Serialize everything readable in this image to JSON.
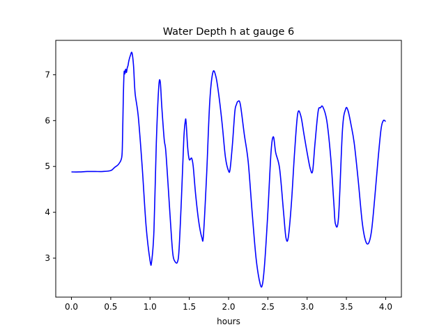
{
  "chart_data": {
    "type": "line",
    "title": "Water Depth h at gauge 6",
    "xlabel": "hours",
    "ylabel": "",
    "xlim": [
      -0.2,
      4.2
    ],
    "ylim": [
      2.15,
      7.75
    ],
    "xticks": [
      0.0,
      0.5,
      1.0,
      1.5,
      2.0,
      2.5,
      3.0,
      3.5,
      4.0
    ],
    "xtick_labels": [
      "0.0",
      "0.5",
      "1.0",
      "1.5",
      "2.0",
      "2.5",
      "3.0",
      "3.5",
      "4.0"
    ],
    "yticks": [
      3,
      4,
      5,
      6,
      7
    ],
    "ytick_labels": [
      "3",
      "4",
      "5",
      "6",
      "7"
    ],
    "grid": false,
    "series": [
      {
        "color": "#0000ff",
        "x": [
          0.0,
          0.1,
          0.2,
          0.3,
          0.4,
          0.5,
          0.55,
          0.6,
          0.64,
          0.65,
          0.66,
          0.67,
          0.68,
          0.69,
          0.7,
          0.71,
          0.72,
          0.73,
          0.75,
          0.77,
          0.79,
          0.81,
          0.85,
          0.9,
          0.95,
          1.0,
          1.02,
          1.05,
          1.08,
          1.11,
          1.13,
          1.15,
          1.18,
          1.2,
          1.23,
          1.26,
          1.29,
          1.32,
          1.35,
          1.37,
          1.4,
          1.43,
          1.45,
          1.46,
          1.48,
          1.5,
          1.53,
          1.55,
          1.58,
          1.62,
          1.66,
          1.68,
          1.72,
          1.76,
          1.8,
          1.84,
          1.88,
          1.92,
          1.96,
          2.0,
          2.02,
          2.05,
          2.08,
          2.1,
          2.12,
          2.15,
          2.2,
          2.25,
          2.3,
          2.35,
          2.4,
          2.43,
          2.46,
          2.5,
          2.54,
          2.57,
          2.6,
          2.65,
          2.7,
          2.73,
          2.76,
          2.8,
          2.84,
          2.88,
          2.92,
          2.96,
          3.0,
          3.04,
          3.07,
          3.1,
          3.14,
          3.17,
          3.2,
          3.25,
          3.3,
          3.34,
          3.36,
          3.4,
          3.45,
          3.49,
          3.52,
          3.56,
          3.6,
          3.65,
          3.7,
          3.74,
          3.78,
          3.82,
          3.86,
          3.9,
          3.94,
          3.97,
          4.0
        ],
        "y": [
          4.88,
          4.88,
          4.89,
          4.89,
          4.89,
          4.91,
          4.98,
          5.05,
          5.2,
          5.6,
          6.5,
          7.05,
          7.02,
          7.12,
          7.05,
          7.15,
          7.2,
          7.3,
          7.42,
          7.48,
          7.2,
          6.6,
          6.1,
          5.0,
          3.7,
          2.95,
          2.92,
          3.6,
          5.5,
          6.7,
          6.85,
          6.3,
          5.6,
          5.35,
          4.6,
          3.8,
          3.1,
          2.92,
          2.92,
          3.2,
          4.3,
          5.6,
          6.0,
          5.95,
          5.4,
          5.15,
          5.18,
          5.0,
          4.4,
          3.8,
          3.45,
          3.5,
          4.8,
          6.4,
          7.05,
          6.95,
          6.5,
          5.9,
          5.2,
          4.9,
          4.95,
          5.5,
          6.2,
          6.35,
          6.42,
          6.35,
          5.7,
          5.1,
          4.0,
          3.0,
          2.45,
          2.42,
          2.9,
          4.0,
          5.3,
          5.65,
          5.3,
          4.95,
          4.0,
          3.45,
          3.45,
          4.2,
          5.3,
          6.15,
          6.1,
          5.7,
          5.3,
          4.95,
          4.9,
          5.5,
          6.2,
          6.28,
          6.3,
          6.0,
          5.2,
          4.2,
          3.75,
          3.9,
          5.8,
          6.25,
          6.22,
          5.9,
          5.5,
          4.7,
          3.8,
          3.4,
          3.32,
          3.6,
          4.3,
          5.1,
          5.8,
          6.0,
          5.98
        ]
      }
    ]
  }
}
